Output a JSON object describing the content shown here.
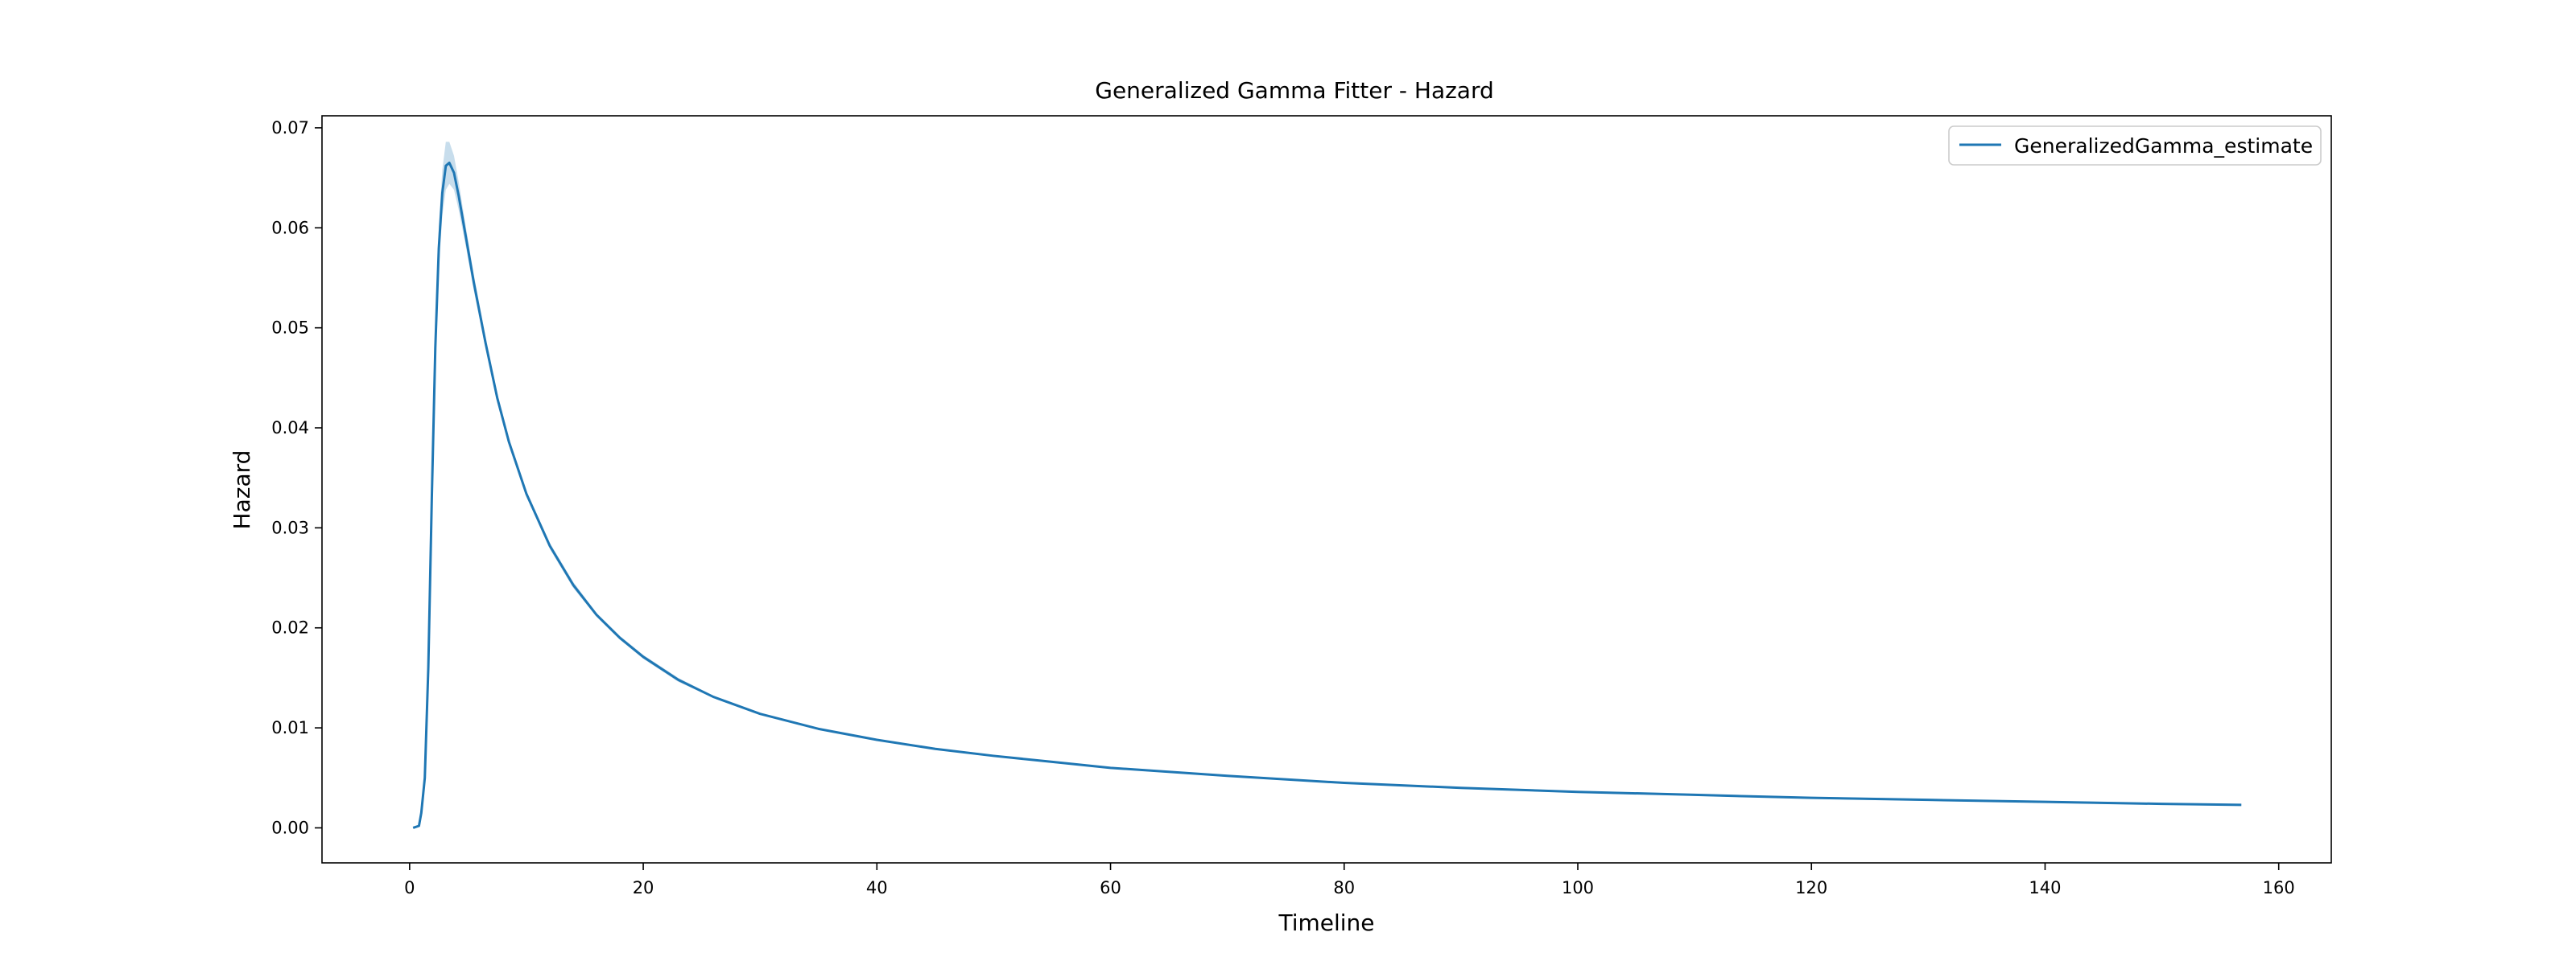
{
  "chart_data": {
    "type": "line",
    "title": "Generalized Gamma Fitter - Hazard",
    "xlabel": "Timeline",
    "ylabel": "Hazard",
    "xlim": [
      -7.5,
      164.5
    ],
    "ylim": [
      -0.0035,
      0.0712
    ],
    "xticks": [
      0,
      20,
      40,
      60,
      80,
      100,
      120,
      140,
      160
    ],
    "yticks": [
      0.0,
      0.01,
      0.02,
      0.03,
      0.04,
      0.05,
      0.06,
      0.07
    ],
    "ytick_labels": [
      "0.00",
      "0.01",
      "0.02",
      "0.03",
      "0.04",
      "0.05",
      "0.06",
      "0.07"
    ],
    "grid": false,
    "legend": {
      "placement": "top-right",
      "entries": [
        "GeneralizedGamma_estimate"
      ]
    },
    "series": [
      {
        "name": "GeneralizedGamma_estimate",
        "color": "#1f77b4",
        "band_color": "#1f77b4",
        "x": [
          0.3,
          0.8,
          1.0,
          1.3,
          1.6,
          1.9,
          2.2,
          2.5,
          2.8,
          3.1,
          3.4,
          3.8,
          4.2,
          4.8,
          5.5,
          6.5,
          7.5,
          8.5,
          10,
          12,
          14,
          16,
          18,
          20,
          23,
          26,
          30,
          35,
          40,
          45,
          50,
          55,
          60,
          70,
          80,
          90,
          100,
          110,
          120,
          130,
          140,
          150,
          156.8
        ],
        "y": [
          0.0,
          0.0002,
          0.0015,
          0.005,
          0.016,
          0.033,
          0.048,
          0.058,
          0.0635,
          0.0662,
          0.0665,
          0.0655,
          0.0632,
          0.0592,
          0.0545,
          0.0485,
          0.043,
          0.0386,
          0.0334,
          0.0282,
          0.0243,
          0.0213,
          0.019,
          0.0171,
          0.0148,
          0.0131,
          0.0114,
          0.0099,
          0.0088,
          0.0079,
          0.0072,
          0.0066,
          0.006,
          0.0052,
          0.0045,
          0.004,
          0.0036,
          0.0033,
          0.003,
          0.0028,
          0.0026,
          0.0024,
          0.0023
        ],
        "upper": [
          0.0,
          0.0003,
          0.0018,
          0.0056,
          0.0173,
          0.0348,
          0.0502,
          0.0602,
          0.0658,
          0.0686,
          0.0686,
          0.0672,
          0.0646,
          0.0602,
          0.0553,
          0.0491,
          0.0435,
          0.039,
          0.0337,
          0.0285,
          0.0246,
          0.0215,
          0.0192,
          0.0173,
          0.015,
          0.0132,
          0.0115,
          0.01,
          0.0089,
          0.008,
          0.0073,
          0.0067,
          0.0061,
          0.0053,
          0.0046,
          0.0041,
          0.0037,
          0.0034,
          0.0031,
          0.0029,
          0.0027,
          0.0025,
          0.0024
        ],
        "lower": [
          0.0,
          0.0001,
          0.0012,
          0.0044,
          0.0147,
          0.0312,
          0.0458,
          0.0558,
          0.0612,
          0.0638,
          0.0644,
          0.0638,
          0.0618,
          0.0582,
          0.0537,
          0.0479,
          0.0425,
          0.0382,
          0.0331,
          0.0279,
          0.024,
          0.0211,
          0.0188,
          0.0169,
          0.0146,
          0.013,
          0.0113,
          0.0098,
          0.0087,
          0.0078,
          0.0071,
          0.0065,
          0.0059,
          0.0051,
          0.0044,
          0.0039,
          0.0035,
          0.0032,
          0.0029,
          0.0027,
          0.0025,
          0.0023,
          0.0022
        ]
      }
    ]
  }
}
